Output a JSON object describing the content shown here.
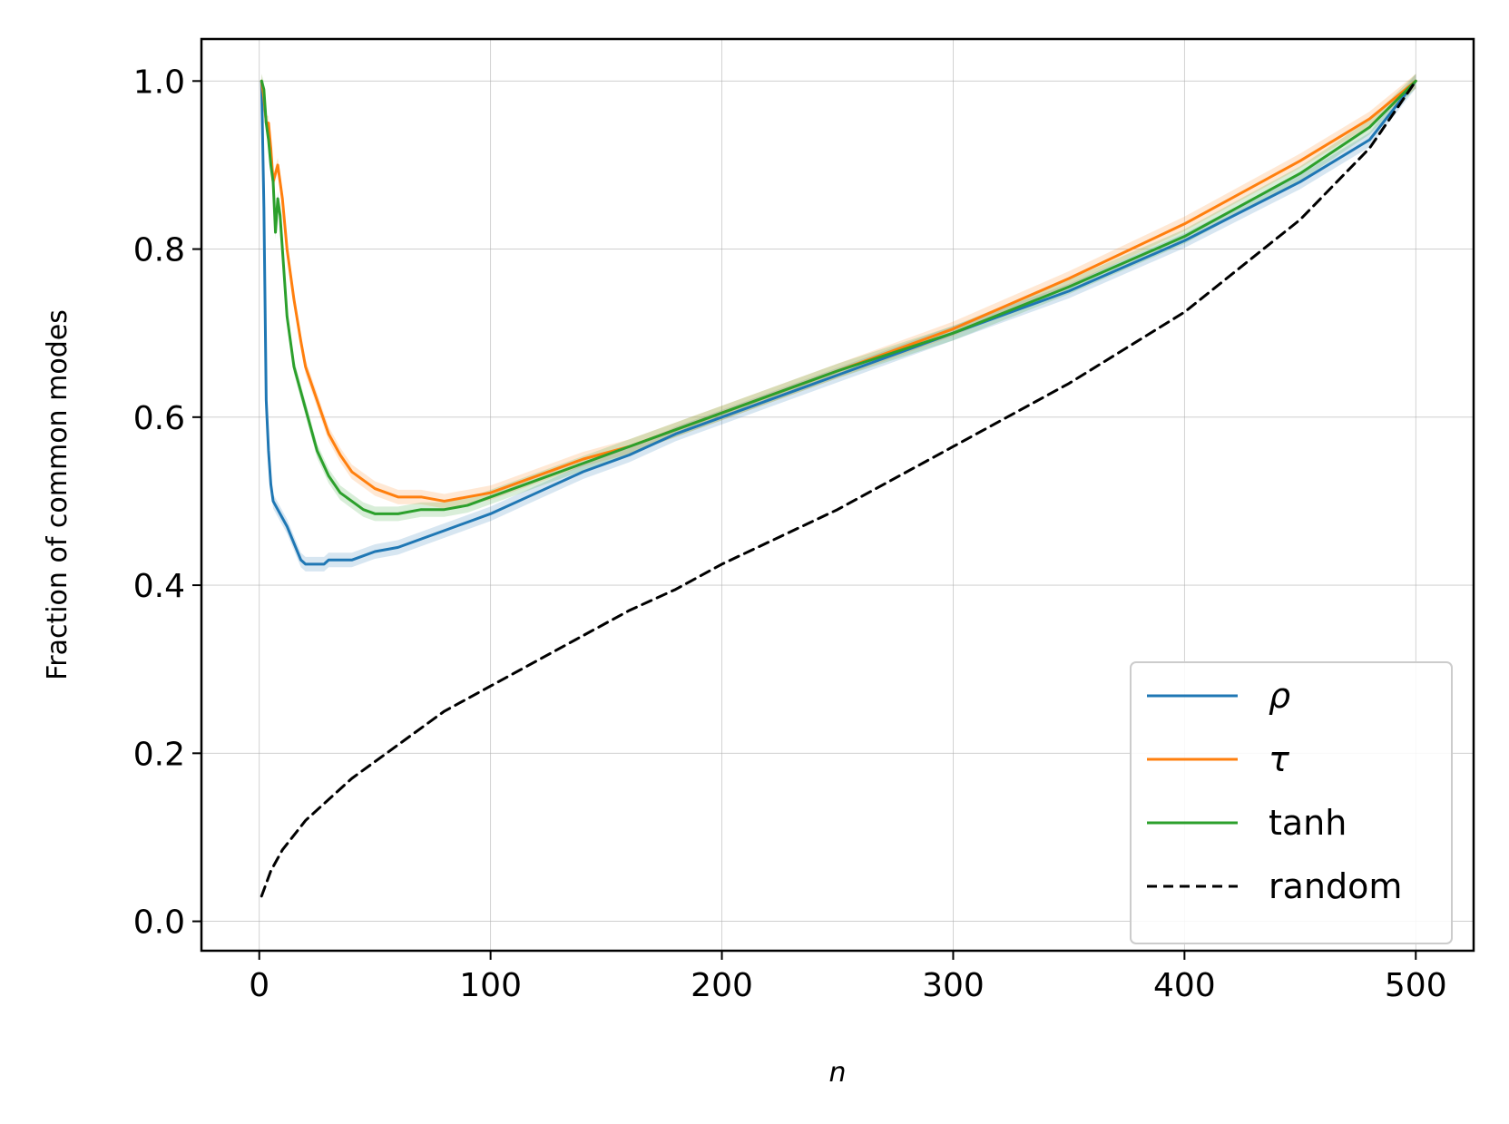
{
  "chart_data": {
    "type": "line",
    "xlabel": "n",
    "ylabel": "Fraction of common modes",
    "xlim": [
      -25,
      525
    ],
    "ylim": [
      -0.035,
      1.05
    ],
    "x_ticks": [
      0,
      100,
      200,
      300,
      400,
      500
    ],
    "x_tick_labels": [
      "0",
      "100",
      "200",
      "300",
      "400",
      "500"
    ],
    "y_ticks": [
      0.0,
      0.2,
      0.4,
      0.6,
      0.8,
      1.0
    ],
    "y_tick_labels": [
      "0.0",
      "0.2",
      "0.4",
      "0.6",
      "0.8",
      "1.0"
    ],
    "grid": true,
    "legend_position": "lower-right",
    "series": [
      {
        "name": "ρ",
        "color": "#1f77b4",
        "style": "solid",
        "band": true,
        "x": [
          1,
          2,
          3,
          4,
          5,
          6,
          8,
          10,
          12,
          15,
          18,
          20,
          23,
          25,
          28,
          30,
          35,
          40,
          45,
          50,
          60,
          70,
          80,
          90,
          100,
          120,
          140,
          160,
          180,
          200,
          250,
          300,
          350,
          400,
          450,
          480,
          500
        ],
        "y": [
          1.0,
          0.85,
          0.62,
          0.56,
          0.52,
          0.5,
          0.49,
          0.48,
          0.47,
          0.45,
          0.43,
          0.425,
          0.425,
          0.425,
          0.425,
          0.43,
          0.43,
          0.43,
          0.435,
          0.44,
          0.445,
          0.455,
          0.465,
          0.475,
          0.485,
          0.51,
          0.535,
          0.555,
          0.58,
          0.6,
          0.65,
          0.7,
          0.75,
          0.81,
          0.88,
          0.93,
          1.0
        ]
      },
      {
        "name": "τ",
        "color": "#ff7f0e",
        "style": "solid",
        "band": true,
        "x": [
          1,
          2,
          3,
          4,
          5,
          6,
          8,
          10,
          12,
          15,
          18,
          20,
          25,
          30,
          35,
          40,
          45,
          50,
          60,
          70,
          80,
          90,
          100,
          120,
          140,
          160,
          180,
          200,
          250,
          300,
          350,
          400,
          450,
          480,
          500
        ],
        "y": [
          1.0,
          0.98,
          0.95,
          0.95,
          0.92,
          0.88,
          0.9,
          0.86,
          0.8,
          0.74,
          0.69,
          0.66,
          0.62,
          0.58,
          0.555,
          0.535,
          0.525,
          0.515,
          0.505,
          0.505,
          0.5,
          0.505,
          0.51,
          0.53,
          0.55,
          0.565,
          0.585,
          0.605,
          0.655,
          0.705,
          0.765,
          0.83,
          0.905,
          0.955,
          1.0
        ]
      },
      {
        "name": "tanh",
        "color": "#2ca02c",
        "style": "solid",
        "band": true,
        "x": [
          1,
          2,
          3,
          4,
          5,
          6,
          7,
          8,
          9,
          10,
          12,
          15,
          18,
          20,
          25,
          30,
          35,
          40,
          45,
          50,
          60,
          70,
          80,
          90,
          100,
          120,
          140,
          160,
          180,
          200,
          250,
          300,
          350,
          400,
          450,
          480,
          500
        ],
        "y": [
          1.0,
          0.99,
          0.95,
          0.93,
          0.9,
          0.88,
          0.82,
          0.86,
          0.84,
          0.8,
          0.72,
          0.66,
          0.63,
          0.61,
          0.56,
          0.53,
          0.51,
          0.5,
          0.49,
          0.485,
          0.485,
          0.49,
          0.49,
          0.495,
          0.505,
          0.525,
          0.545,
          0.565,
          0.585,
          0.605,
          0.655,
          0.7,
          0.755,
          0.815,
          0.89,
          0.945,
          1.0
        ]
      },
      {
        "name": "random",
        "color": "#000000",
        "style": "dashed",
        "band": false,
        "x": [
          1,
          5,
          10,
          20,
          30,
          40,
          50,
          60,
          70,
          80,
          90,
          100,
          120,
          140,
          160,
          180,
          200,
          250,
          300,
          350,
          400,
          450,
          480,
          500
        ],
        "y": [
          0.03,
          0.06,
          0.085,
          0.12,
          0.145,
          0.17,
          0.19,
          0.21,
          0.23,
          0.25,
          0.265,
          0.28,
          0.31,
          0.34,
          0.37,
          0.395,
          0.425,
          0.49,
          0.565,
          0.64,
          0.725,
          0.835,
          0.92,
          1.0
        ]
      }
    ]
  }
}
